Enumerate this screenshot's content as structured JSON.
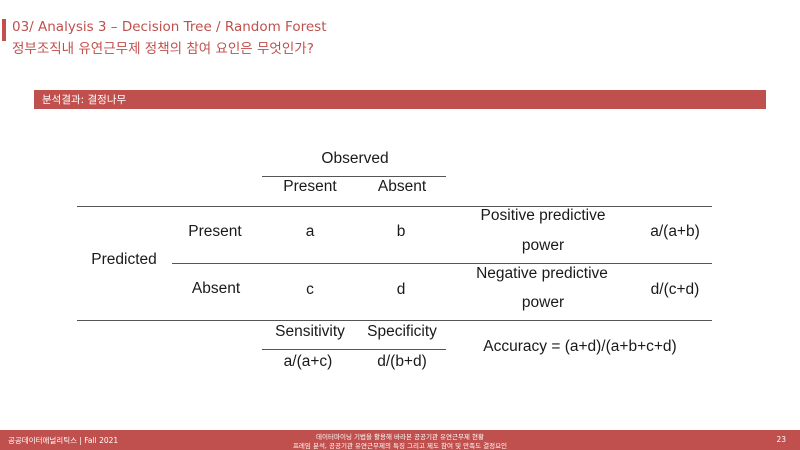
{
  "header": {
    "title_line1": "03/ Analysis 3 – Decision Tree / Random Forest",
    "title_line2": "정부조직내 유연근무제 정책의 참여 요인은 무엇인가?",
    "band_label": "분석결과: 결정나무"
  },
  "table": {
    "observed": "Observed",
    "col_present": "Present",
    "col_absent": "Absent",
    "predicted": "Predicted",
    "row_present": "Present",
    "row_absent": "Absent",
    "cell_a": "a",
    "cell_b": "b",
    "cell_c": "c",
    "cell_d": "d",
    "ppv_line1": "Positive predictive",
    "ppv_line2": "power",
    "ppv_formula": "a/(a+b)",
    "npv_line1": "Negative predictive",
    "npv_line2": "power",
    "npv_formula": "d/(c+d)",
    "sensitivity": "Sensitivity",
    "specificity": "Specificity",
    "sensitivity_formula": "a/(a+c)",
    "specificity_formula": "d/(b+d)",
    "accuracy": "Accuracy = (a+d)/(a+b+c+d)"
  },
  "footer": {
    "left": "공공데이터애널리틱스 | Fall 2021",
    "center_line1": "데이터마이닝 기법을 활용해 바라본 공공기관 유연근무제 현황",
    "center_line2": "프레임 분석, 공공기관 유연근무제의 특징 그리고 제도 참여 및 만족도 결정요인",
    "page": "23"
  }
}
